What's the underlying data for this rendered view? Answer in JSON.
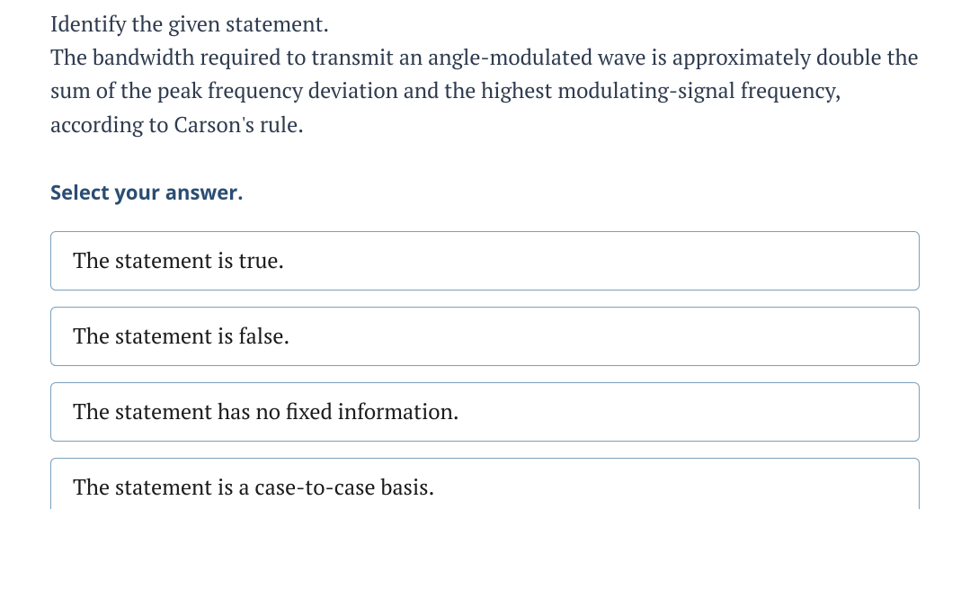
{
  "question": {
    "prompt_line1": "Identify the given statement.",
    "body": "The bandwidth required to transmit an angle-modulated wave is approximately double the sum of the peak frequency deviation and the highest modulating-signal frequency, according to Carson's rule."
  },
  "select_label": "Select your answer.",
  "options": [
    {
      "label": "The statement is true."
    },
    {
      "label": "The statement is false."
    },
    {
      "label": "The statement has no fixed information."
    },
    {
      "label": "The statement is a case-to-case basis."
    }
  ],
  "styles": {
    "text_color": "#2e3b4e",
    "select_label_color": "#2a4d73",
    "option_border_color": "#7aa0bb",
    "option_text_color": "#1b1b1b",
    "background_color": "#ffffff",
    "question_fontsize": 24,
    "option_fontsize": 24,
    "select_label_fontsize": 22,
    "option_border_radius": 6
  }
}
